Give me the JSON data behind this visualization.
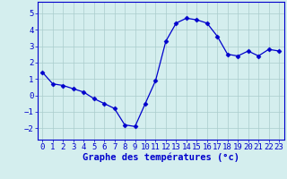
{
  "x": [
    0,
    1,
    2,
    3,
    4,
    5,
    6,
    7,
    8,
    9,
    10,
    11,
    12,
    13,
    14,
    15,
    16,
    17,
    18,
    19,
    20,
    21,
    22,
    23
  ],
  "y": [
    1.4,
    0.7,
    0.6,
    0.4,
    0.2,
    -0.2,
    -0.5,
    -0.8,
    -1.8,
    -1.9,
    -0.5,
    0.9,
    3.3,
    4.4,
    4.7,
    4.6,
    4.4,
    3.6,
    2.5,
    2.4,
    2.7,
    2.4,
    2.8,
    2.7
  ],
  "line_color": "#0000cc",
  "marker": "D",
  "marker_size": 2.5,
  "bg_color": "#d4eeee",
  "grid_color": "#aacccc",
  "xlabel": "Graphe des températures (°c)",
  "xlabel_color": "#0000cc",
  "xlabel_fontsize": 7.5,
  "tick_color": "#0000cc",
  "tick_fontsize": 6.5,
  "yticks": [
    -2,
    -1,
    0,
    1,
    2,
    3,
    4,
    5
  ],
  "xticks": [
    0,
    1,
    2,
    3,
    4,
    5,
    6,
    7,
    8,
    9,
    10,
    11,
    12,
    13,
    14,
    15,
    16,
    17,
    18,
    19,
    20,
    21,
    22,
    23
  ],
  "xlim": [
    -0.5,
    23.5
  ],
  "ylim": [
    -2.7,
    5.7
  ]
}
